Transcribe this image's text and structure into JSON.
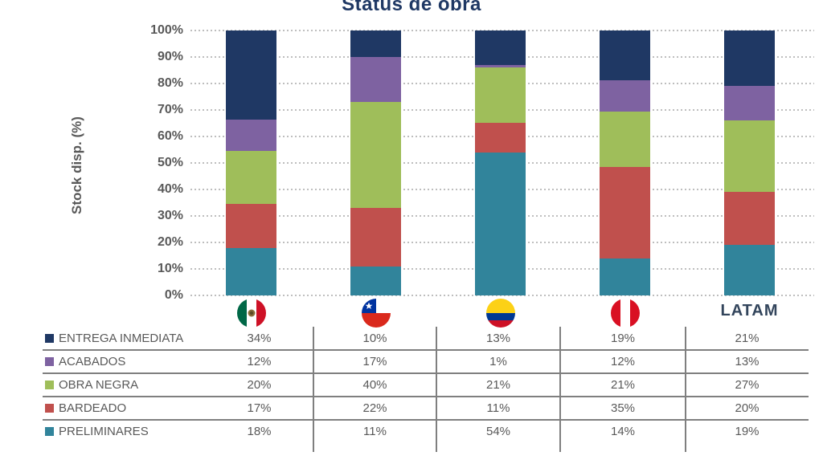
{
  "chart_data": {
    "type": "bar",
    "stacked": true,
    "title": "Status de obra",
    "ylabel": "Stock disp. (%)",
    "ylim": [
      0,
      100
    ],
    "ytick_labels": [
      "100%",
      "90%",
      "80%",
      "70%",
      "60%",
      "50%",
      "40%",
      "30%",
      "20%",
      "10%",
      "0%"
    ],
    "grid": "horizontal dotted lines every 10%",
    "legend_position": "table below chart, one row per series",
    "value_suffix": "%",
    "categories": [
      {
        "icon": "mexico-flag-icon",
        "label": ""
      },
      {
        "icon": "chile-flag-icon",
        "label": ""
      },
      {
        "icon": "colombia-flag-icon",
        "label": ""
      },
      {
        "icon": "peru-flag-icon",
        "label": ""
      },
      {
        "icon": "",
        "label": "LATAM"
      }
    ],
    "series": [
      {
        "name": "ENTREGA INMEDIATA",
        "color": "#1F3864",
        "values": [
          34,
          10,
          13,
          19,
          21
        ]
      },
      {
        "name": "ACABADOS",
        "color": "#7E62A1",
        "values": [
          12,
          17,
          1,
          12,
          13
        ]
      },
      {
        "name": "OBRA NEGRA",
        "color": "#9FBE5A",
        "values": [
          20,
          40,
          21,
          21,
          27
        ]
      },
      {
        "name": "BARDEADO",
        "color": "#C0504D",
        "values": [
          17,
          22,
          11,
          35,
          20
        ]
      },
      {
        "name": "PRELIMINARES",
        "color": "#31849B",
        "values": [
          18,
          11,
          54,
          14,
          19
        ]
      }
    ]
  },
  "colors": {
    "title_text": "#1F3864",
    "axis_text": "#595959",
    "table_text": "#595959",
    "grid_line": "#BEBEBE",
    "table_line": "#7F7F7F",
    "latam_text": "#33455C"
  }
}
